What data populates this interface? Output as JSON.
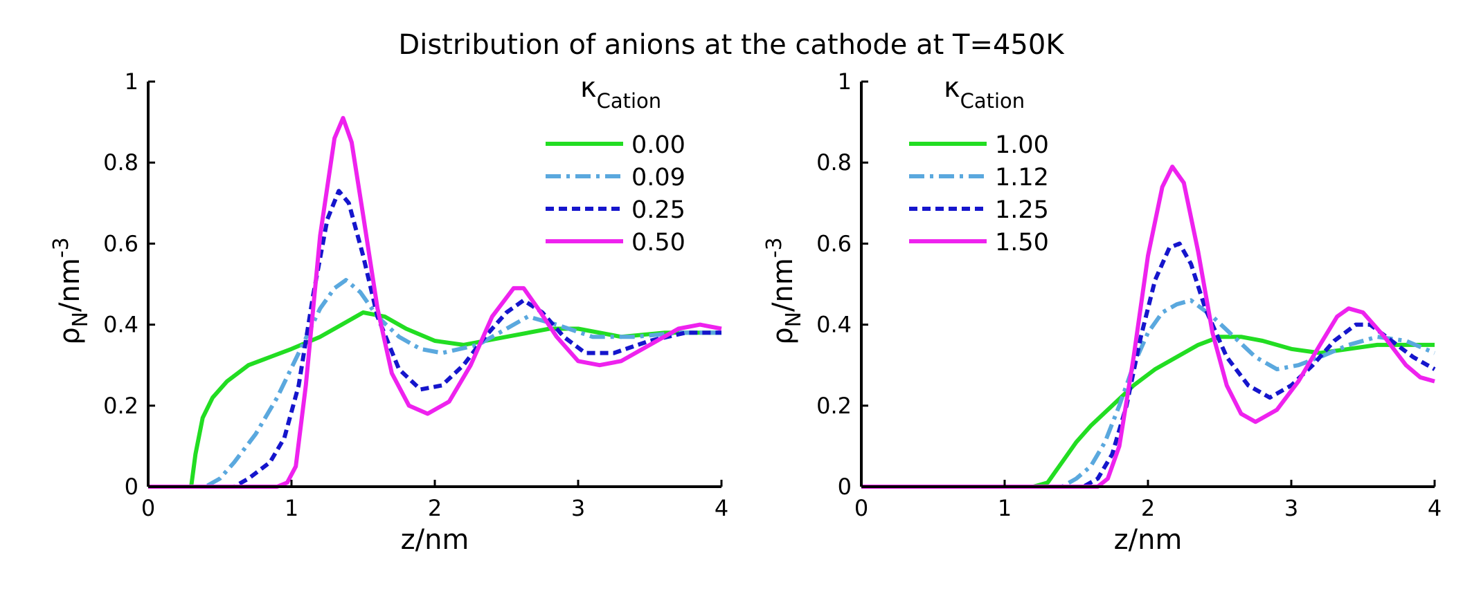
{
  "suptitle": "Distribution of anions at the cathode at T=450K",
  "chart_data": [
    {
      "type": "line",
      "xlabel": "z/nm",
      "ylabel": "ρ_N/nm^-3",
      "xlim": [
        0,
        4
      ],
      "ylim": [
        0,
        1
      ],
      "xticks": [
        "0",
        "1",
        "2",
        "3",
        "4"
      ],
      "yticks": [
        "0",
        "0.2",
        "0.4",
        "0.6",
        "0.8",
        "1"
      ],
      "grid": false,
      "legend_position": "top-right",
      "legend_title": {
        "main": "κ",
        "sub": "Cation"
      },
      "series": [
        {
          "name": "0.00",
          "color": "#22dd22",
          "style": "solid",
          "points": [
            [
              0,
              0
            ],
            [
              0.3,
              0
            ],
            [
              0.33,
              0.08
            ],
            [
              0.38,
              0.17
            ],
            [
              0.45,
              0.22
            ],
            [
              0.55,
              0.26
            ],
            [
              0.7,
              0.3
            ],
            [
              0.85,
              0.32
            ],
            [
              1.0,
              0.34
            ],
            [
              1.2,
              0.37
            ],
            [
              1.35,
              0.4
            ],
            [
              1.5,
              0.43
            ],
            [
              1.65,
              0.42
            ],
            [
              1.8,
              0.39
            ],
            [
              2.0,
              0.36
            ],
            [
              2.2,
              0.35
            ],
            [
              2.5,
              0.37
            ],
            [
              2.8,
              0.39
            ],
            [
              3.0,
              0.39
            ],
            [
              3.3,
              0.37
            ],
            [
              3.6,
              0.38
            ],
            [
              4.0,
              0.38
            ]
          ]
        },
        {
          "name": "0.09",
          "color": "#5aa8de",
          "style": "dashdot",
          "points": [
            [
              0,
              0
            ],
            [
              0.4,
              0
            ],
            [
              0.5,
              0.02
            ],
            [
              0.6,
              0.06
            ],
            [
              0.75,
              0.13
            ],
            [
              0.9,
              0.22
            ],
            [
              1.05,
              0.33
            ],
            [
              1.2,
              0.44
            ],
            [
              1.3,
              0.49
            ],
            [
              1.38,
              0.51
            ],
            [
              1.48,
              0.48
            ],
            [
              1.6,
              0.42
            ],
            [
              1.75,
              0.37
            ],
            [
              1.9,
              0.34
            ],
            [
              2.05,
              0.33
            ],
            [
              2.3,
              0.35
            ],
            [
              2.5,
              0.39
            ],
            [
              2.65,
              0.42
            ],
            [
              2.85,
              0.4
            ],
            [
              3.1,
              0.37
            ],
            [
              3.4,
              0.37
            ],
            [
              3.7,
              0.38
            ],
            [
              4.0,
              0.38
            ]
          ]
        },
        {
          "name": "0.25",
          "color": "#1515cc",
          "style": "dashed",
          "points": [
            [
              0,
              0
            ],
            [
              0.6,
              0
            ],
            [
              0.7,
              0.02
            ],
            [
              0.85,
              0.06
            ],
            [
              0.95,
              0.12
            ],
            [
              1.05,
              0.25
            ],
            [
              1.15,
              0.47
            ],
            [
              1.25,
              0.66
            ],
            [
              1.33,
              0.73
            ],
            [
              1.4,
              0.7
            ],
            [
              1.5,
              0.57
            ],
            [
              1.6,
              0.42
            ],
            [
              1.75,
              0.29
            ],
            [
              1.9,
              0.24
            ],
            [
              2.05,
              0.25
            ],
            [
              2.2,
              0.3
            ],
            [
              2.35,
              0.37
            ],
            [
              2.5,
              0.43
            ],
            [
              2.62,
              0.46
            ],
            [
              2.75,
              0.43
            ],
            [
              2.9,
              0.37
            ],
            [
              3.05,
              0.33
            ],
            [
              3.25,
              0.33
            ],
            [
              3.5,
              0.36
            ],
            [
              3.75,
              0.38
            ],
            [
              4.0,
              0.38
            ]
          ]
        },
        {
          "name": "0.50",
          "color": "#ee22ee",
          "style": "solid",
          "points": [
            [
              0,
              0
            ],
            [
              0.9,
              0
            ],
            [
              0.97,
              0.01
            ],
            [
              1.03,
              0.05
            ],
            [
              1.1,
              0.25
            ],
            [
              1.2,
              0.62
            ],
            [
              1.3,
              0.86
            ],
            [
              1.36,
              0.91
            ],
            [
              1.42,
              0.85
            ],
            [
              1.5,
              0.67
            ],
            [
              1.6,
              0.44
            ],
            [
              1.7,
              0.28
            ],
            [
              1.82,
              0.2
            ],
            [
              1.95,
              0.18
            ],
            [
              2.1,
              0.21
            ],
            [
              2.25,
              0.3
            ],
            [
              2.4,
              0.42
            ],
            [
              2.55,
              0.49
            ],
            [
              2.62,
              0.49
            ],
            [
              2.72,
              0.44
            ],
            [
              2.85,
              0.37
            ],
            [
              3.0,
              0.31
            ],
            [
              3.15,
              0.3
            ],
            [
              3.3,
              0.31
            ],
            [
              3.5,
              0.35
            ],
            [
              3.7,
              0.39
            ],
            [
              3.85,
              0.4
            ],
            [
              4.0,
              0.39
            ]
          ]
        }
      ]
    },
    {
      "type": "line",
      "xlabel": "z/nm",
      "ylabel": "ρ_N/nm^-3",
      "xlim": [
        0,
        4
      ],
      "ylim": [
        0,
        1
      ],
      "xticks": [
        "0",
        "1",
        "2",
        "3",
        "4"
      ],
      "yticks": [
        "0",
        "0.2",
        "0.4",
        "0.6",
        "0.8",
        "1"
      ],
      "grid": false,
      "legend_position": "top-left",
      "legend_title": {
        "main": "κ",
        "sub": "Cation"
      },
      "series": [
        {
          "name": "1.00",
          "color": "#22dd22",
          "style": "solid",
          "points": [
            [
              0,
              0
            ],
            [
              1.2,
              0
            ],
            [
              1.3,
              0.01
            ],
            [
              1.4,
              0.06
            ],
            [
              1.5,
              0.11
            ],
            [
              1.6,
              0.15
            ],
            [
              1.75,
              0.2
            ],
            [
              1.9,
              0.25
            ],
            [
              2.05,
              0.29
            ],
            [
              2.2,
              0.32
            ],
            [
              2.35,
              0.35
            ],
            [
              2.5,
              0.37
            ],
            [
              2.65,
              0.37
            ],
            [
              2.8,
              0.36
            ],
            [
              3.0,
              0.34
            ],
            [
              3.2,
              0.33
            ],
            [
              3.4,
              0.34
            ],
            [
              3.6,
              0.35
            ],
            [
              3.8,
              0.35
            ],
            [
              4.0,
              0.35
            ]
          ]
        },
        {
          "name": "1.12",
          "color": "#5aa8de",
          "style": "dashdot",
          "points": [
            [
              0,
              0
            ],
            [
              1.4,
              0
            ],
            [
              1.5,
              0.02
            ],
            [
              1.6,
              0.05
            ],
            [
              1.7,
              0.11
            ],
            [
              1.8,
              0.2
            ],
            [
              1.9,
              0.3
            ],
            [
              2.0,
              0.38
            ],
            [
              2.1,
              0.43
            ],
            [
              2.2,
              0.45
            ],
            [
              2.3,
              0.46
            ],
            [
              2.45,
              0.42
            ],
            [
              2.6,
              0.37
            ],
            [
              2.75,
              0.32
            ],
            [
              2.9,
              0.29
            ],
            [
              3.05,
              0.3
            ],
            [
              3.2,
              0.32
            ],
            [
              3.4,
              0.35
            ],
            [
              3.6,
              0.37
            ],
            [
              3.8,
              0.36
            ],
            [
              4.0,
              0.33
            ]
          ]
        },
        {
          "name": "1.25",
          "color": "#1515cc",
          "style": "dashed",
          "points": [
            [
              0,
              0
            ],
            [
              1.55,
              0
            ],
            [
              1.65,
              0.02
            ],
            [
              1.75,
              0.08
            ],
            [
              1.85,
              0.2
            ],
            [
              1.95,
              0.37
            ],
            [
              2.05,
              0.51
            ],
            [
              2.15,
              0.59
            ],
            [
              2.22,
              0.6
            ],
            [
              2.3,
              0.55
            ],
            [
              2.4,
              0.44
            ],
            [
              2.55,
              0.32
            ],
            [
              2.7,
              0.25
            ],
            [
              2.85,
              0.22
            ],
            [
              3.0,
              0.25
            ],
            [
              3.15,
              0.3
            ],
            [
              3.3,
              0.36
            ],
            [
              3.45,
              0.4
            ],
            [
              3.55,
              0.4
            ],
            [
              3.7,
              0.36
            ],
            [
              3.85,
              0.32
            ],
            [
              4.0,
              0.29
            ]
          ]
        },
        {
          "name": "1.50",
          "color": "#ee22ee",
          "style": "solid",
          "points": [
            [
              0,
              0
            ],
            [
              1.65,
              0
            ],
            [
              1.72,
              0.02
            ],
            [
              1.8,
              0.1
            ],
            [
              1.9,
              0.32
            ],
            [
              2.0,
              0.57
            ],
            [
              2.1,
              0.74
            ],
            [
              2.17,
              0.79
            ],
            [
              2.25,
              0.75
            ],
            [
              2.35,
              0.58
            ],
            [
              2.45,
              0.38
            ],
            [
              2.55,
              0.25
            ],
            [
              2.65,
              0.18
            ],
            [
              2.75,
              0.16
            ],
            [
              2.9,
              0.19
            ],
            [
              3.05,
              0.26
            ],
            [
              3.2,
              0.35
            ],
            [
              3.32,
              0.42
            ],
            [
              3.4,
              0.44
            ],
            [
              3.5,
              0.43
            ],
            [
              3.65,
              0.37
            ],
            [
              3.8,
              0.3
            ],
            [
              3.9,
              0.27
            ],
            [
              4.0,
              0.26
            ]
          ]
        }
      ]
    }
  ]
}
